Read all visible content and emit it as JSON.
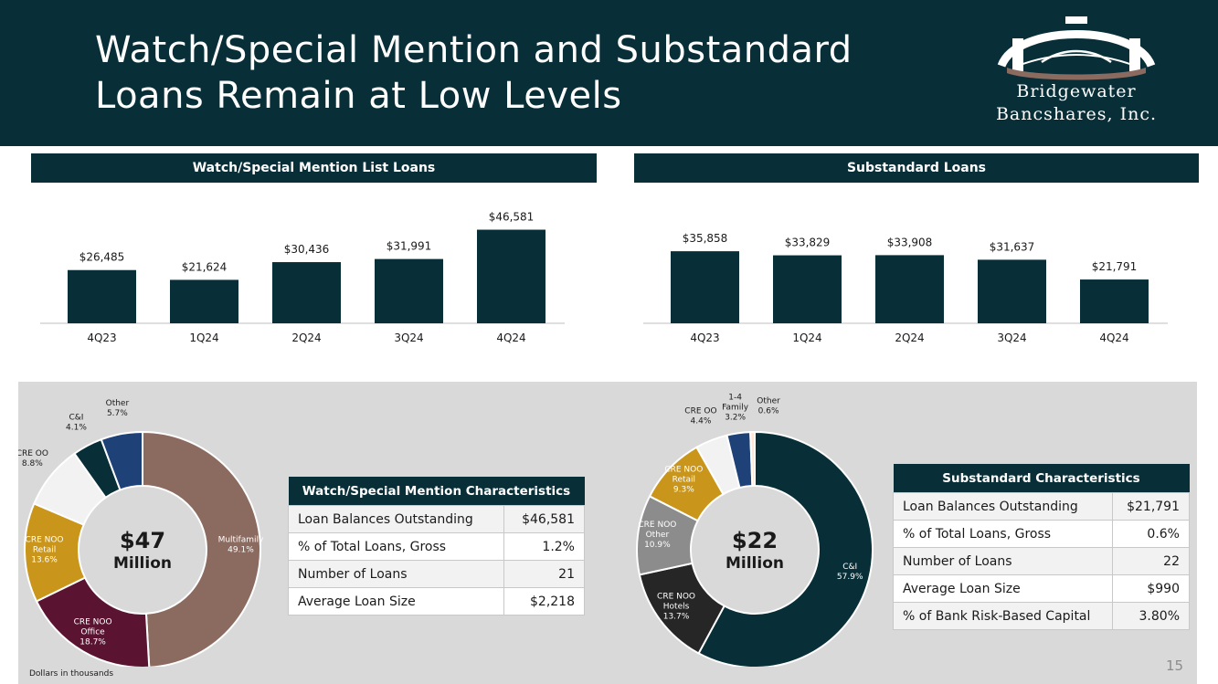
{
  "header": {
    "title_line1": "Watch/Special Mention and Substandard",
    "title_line2": "Loans Remain at Low Levels",
    "logo_line1": "Bridgewater",
    "logo_line2": "Bancshares, Inc."
  },
  "colors": {
    "dark_teal": "#082f38",
    "brown": "#8b6b60",
    "maroon": "#5a1432",
    "gold": "#c9961b",
    "white_slice": "#f2f2f2",
    "navy": "#1e4278",
    "dark_gray": "#262626",
    "mid_gray": "#8c8c8c",
    "peach": "#ffe6d2"
  },
  "watch_section": {
    "heading": "Watch/Special Mention List Loans"
  },
  "substandard_section": {
    "heading": "Substandard Loans"
  },
  "chart_data": [
    {
      "type": "bar",
      "title": "Watch/Special Mention List Loans",
      "categories": [
        "4Q23",
        "1Q24",
        "2Q24",
        "3Q24",
        "4Q24"
      ],
      "values": [
        26485,
        21624,
        30436,
        31991,
        46581
      ],
      "labels": [
        "$26,485",
        "$21,624",
        "$30,436",
        "$31,991",
        "$46,581"
      ],
      "ylim": [
        0,
        50000
      ]
    },
    {
      "type": "bar",
      "title": "Substandard Loans",
      "categories": [
        "4Q23",
        "1Q24",
        "2Q24",
        "3Q24",
        "4Q24"
      ],
      "values": [
        35858,
        33829,
        33908,
        31637,
        21791
      ],
      "labels": [
        "$35,858",
        "$33,829",
        "$33,908",
        "$31,637",
        "$21,791"
      ],
      "ylim": [
        0,
        50000
      ]
    },
    {
      "type": "pie",
      "title": "Watch/Special Mention Composition",
      "center_value": "$47",
      "center_unit": "Million",
      "slices": [
        {
          "label": "Multifamily",
          "pct_label": "49.1%",
          "value": 49.1,
          "color": "#8b6b60"
        },
        {
          "label": "CRE NOO Office",
          "pct_label": "18.7%",
          "value": 18.7,
          "color": "#5a1432"
        },
        {
          "label": "CRE NOO Retail",
          "pct_label": "13.6%",
          "value": 13.6,
          "color": "#c9961b"
        },
        {
          "label": "CRE OO",
          "pct_label": "8.8%",
          "value": 8.8,
          "color": "#f2f2f2"
        },
        {
          "label": "C&I",
          "pct_label": "4.1%",
          "value": 4.1,
          "color": "#082f38"
        },
        {
          "label": "Other",
          "pct_label": "5.7%",
          "value": 5.7,
          "color": "#1e4278"
        }
      ]
    },
    {
      "type": "pie",
      "title": "Substandard Composition",
      "center_value": "$22",
      "center_unit": "Million",
      "slices": [
        {
          "label": "C&I",
          "pct_label": "57.9%",
          "value": 57.9,
          "color": "#082f38"
        },
        {
          "label": "CRE NOO Hotels",
          "pct_label": "13.7%",
          "value": 13.7,
          "color": "#262626"
        },
        {
          "label": "CRE NOO Other",
          "pct_label": "10.9%",
          "value": 10.9,
          "color": "#8c8c8c"
        },
        {
          "label": "CRE NOO Retail",
          "pct_label": "9.3%",
          "value": 9.3,
          "color": "#c9961b"
        },
        {
          "label": "CRE OO",
          "pct_label": "4.4%",
          "value": 4.4,
          "color": "#f2f2f2"
        },
        {
          "label": "1-4 Family",
          "pct_label": "3.2%",
          "value": 3.2,
          "color": "#1e4278"
        },
        {
          "label": "Other",
          "pct_label": "0.6%",
          "value": 0.6,
          "color": "#ffe6d2"
        }
      ]
    }
  ],
  "watch_table": {
    "title": "Watch/Special Mention Characteristics",
    "rows": [
      {
        "label": "Loan Balances Outstanding",
        "value": "$46,581"
      },
      {
        "label": "% of Total Loans, Gross",
        "value": "1.2%"
      },
      {
        "label": "Number of Loans",
        "value": "21"
      },
      {
        "label": "Average Loan Size",
        "value": "$2,218"
      }
    ]
  },
  "substandard_table": {
    "title": "Substandard Characteristics",
    "rows": [
      {
        "label": "Loan Balances Outstanding",
        "value": "$21,791"
      },
      {
        "label": "% of Total Loans, Gross",
        "value": "0.6%"
      },
      {
        "label": "Number of Loans",
        "value": "22"
      },
      {
        "label": "Average Loan Size",
        "value": "$990"
      },
      {
        "label": "% of Bank Risk-Based Capital",
        "value": "3.80%"
      }
    ]
  },
  "footnote": "Dollars in thousands",
  "page_number": "15"
}
